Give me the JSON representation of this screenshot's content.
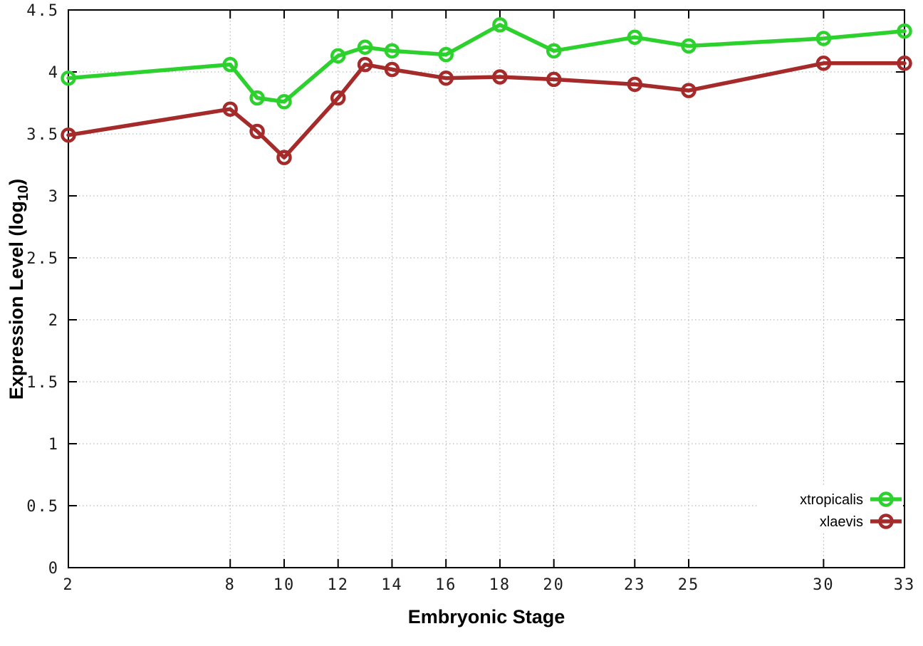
{
  "chart_data": {
    "type": "line",
    "title": "",
    "xlabel": "Embryonic Stage",
    "ylabel": "Expression Level (log10)",
    "ylabel_parts": {
      "prefix": "Expression Level (log",
      "sub": "10",
      "suffix": ")"
    },
    "xlim": [
      2,
      33
    ],
    "ylim": [
      0,
      4.5
    ],
    "xticks": [
      2,
      8,
      10,
      12,
      14,
      16,
      18,
      20,
      23,
      25,
      30,
      33
    ],
    "xtick_labels": [
      "2",
      "8",
      "10",
      "12",
      "14",
      "16",
      "18",
      "20",
      "23",
      "25",
      "30",
      "33"
    ],
    "yticks": [
      0,
      0.5,
      1,
      1.5,
      2,
      2.5,
      3,
      3.5,
      4,
      4.5
    ],
    "ytick_labels": [
      "0",
      "0.5",
      "1",
      "1.5",
      "2",
      "2.5",
      "3",
      "3.5",
      "4",
      "4.5"
    ],
    "grid": true,
    "grid_color": "#a9a9a9",
    "border_color": "#000000",
    "legend_position": "bottom-right",
    "x": [
      2,
      8,
      9,
      10,
      12,
      13,
      14,
      16,
      18,
      20,
      23,
      25,
      30,
      33
    ],
    "series": [
      {
        "name": "xtropicalis",
        "color": "#2dd12d",
        "marker": "open-circle",
        "values": [
          3.95,
          4.06,
          3.79,
          3.76,
          4.13,
          4.2,
          4.17,
          4.14,
          4.38,
          4.17,
          4.28,
          4.21,
          4.27,
          4.33
        ]
      },
      {
        "name": "xlaevis",
        "color": "#a52a2a",
        "marker": "open-circle",
        "values": [
          3.49,
          3.7,
          3.52,
          3.31,
          3.79,
          4.06,
          4.02,
          3.95,
          3.96,
          3.94,
          3.9,
          3.85,
          4.07,
          4.07
        ]
      }
    ]
  }
}
